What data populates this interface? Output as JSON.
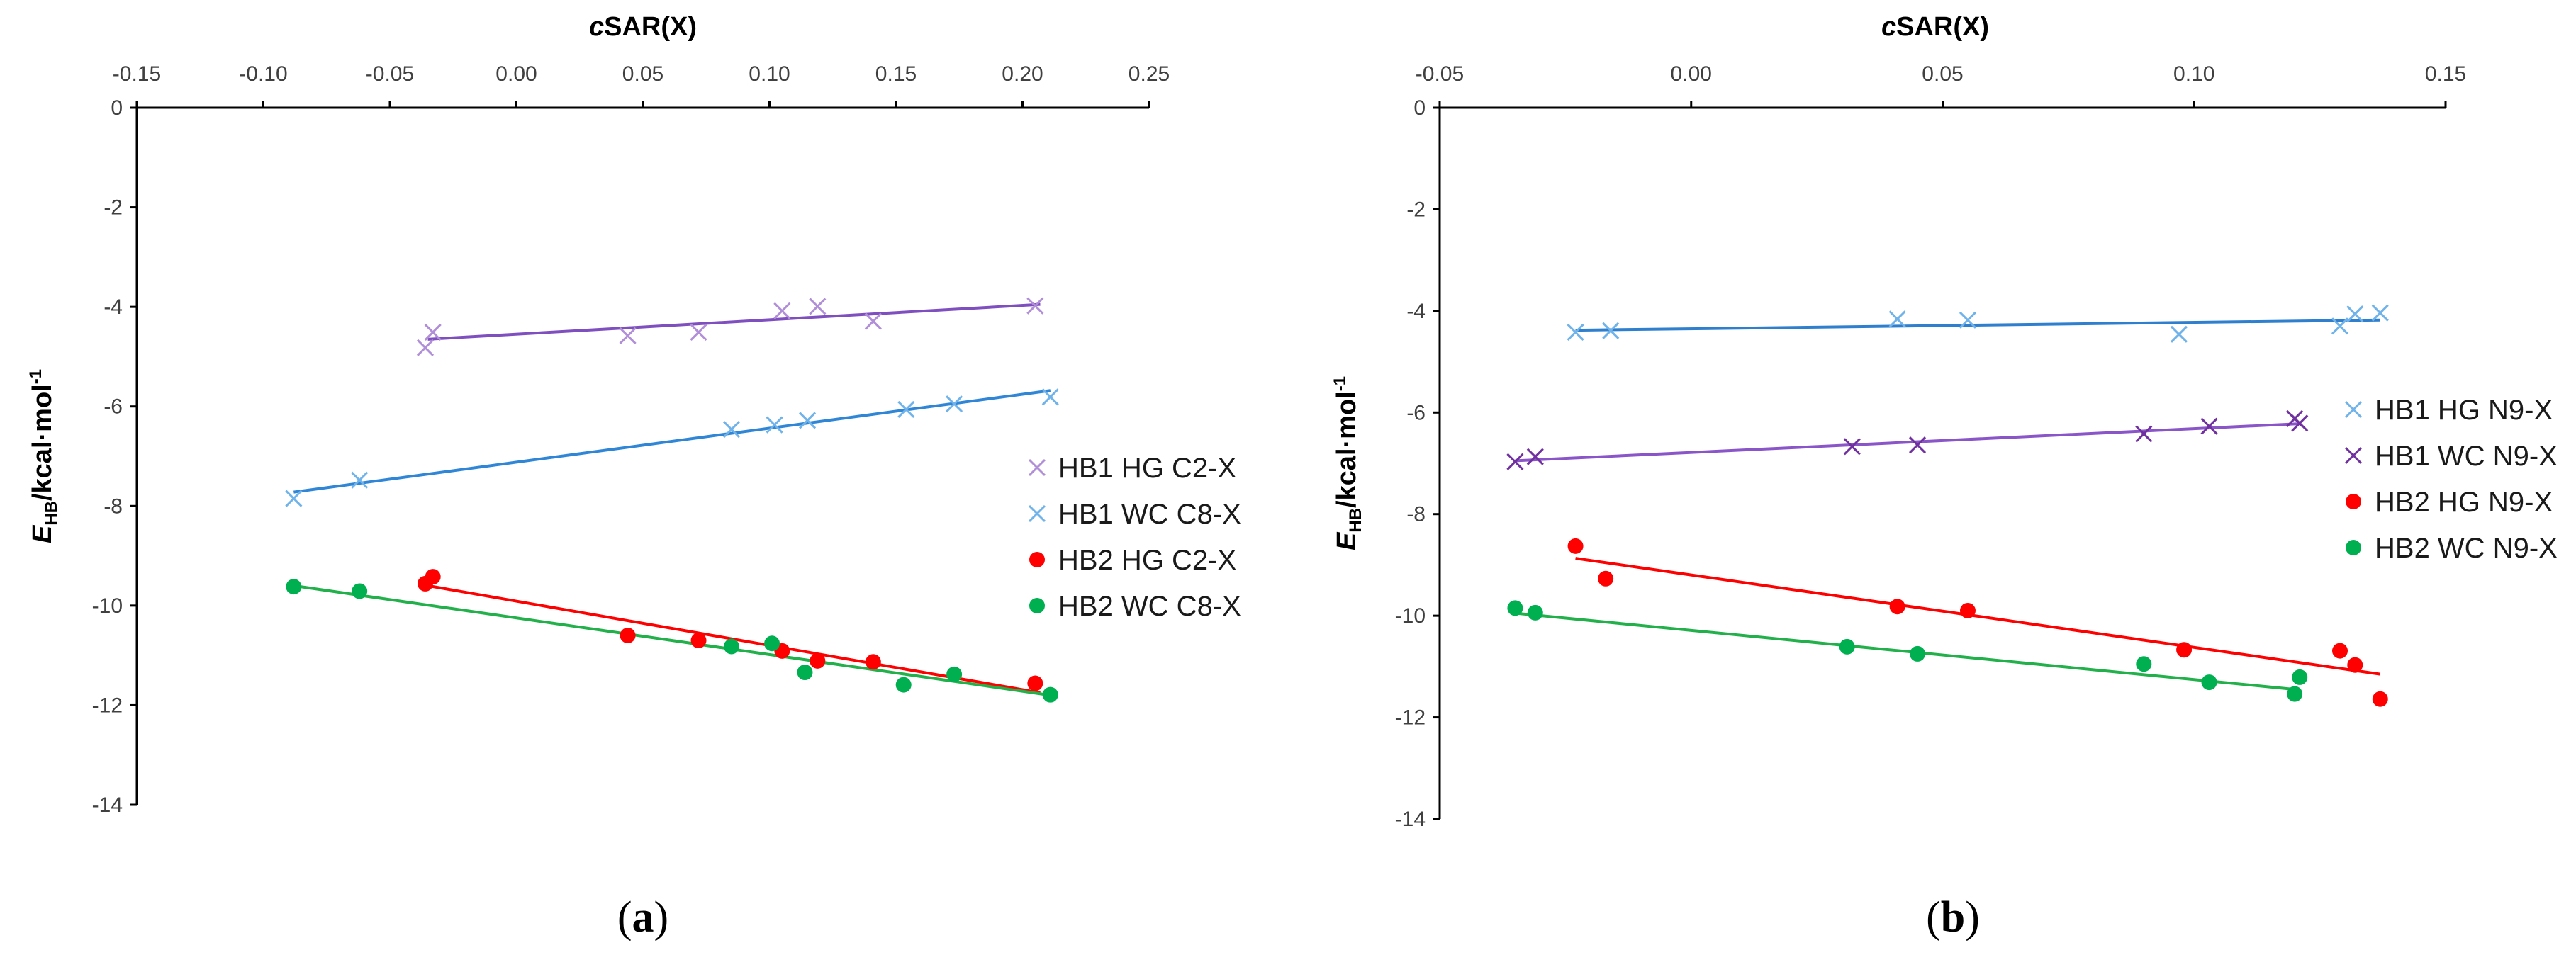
{
  "chart_data": [
    {
      "type": "scatter",
      "panel_label": "(a)",
      "panel_letter": "a",
      "xlabel": "cSAR(X)",
      "ylabel": "E_HB/kcal·mol⁻¹",
      "xlim": [
        -0.15,
        0.25
      ],
      "ylim": [
        -14,
        0
      ],
      "x_ticks": [
        "-0.15",
        "-0.10",
        "-0.05",
        "0.00",
        "0.05",
        "0.10",
        "0.15",
        "0.20",
        "0.25"
      ],
      "y_ticks": [
        "0",
        "-2",
        "-4",
        "-6",
        "-8",
        "-10",
        "-12",
        "-14"
      ],
      "x_axis_position": "top",
      "grid": false,
      "legend": "right",
      "series": [
        {
          "name": "HB1 HG C2-X",
          "marker": "x",
          "color": "#b18fd8",
          "line_color": "#7f4fc0",
          "x": [
            -0.036,
            -0.033,
            0.044,
            0.072,
            0.105,
            0.119,
            0.141,
            0.205
          ],
          "y": [
            -4.82,
            -4.51,
            -4.58,
            -4.51,
            -4.08,
            -3.99,
            -4.29,
            -3.98
          ],
          "trend": [
            [
              -0.035,
              -4.65
            ],
            [
              0.207,
              -3.95
            ]
          ]
        },
        {
          "name": "HB1 WC C8-X",
          "marker": "x",
          "color": "#6fb3ea",
          "line_color": "#2f86d6",
          "x": [
            -0.088,
            -0.062,
            0.085,
            0.102,
            0.115,
            0.154,
            0.173,
            0.211
          ],
          "y": [
            -7.85,
            -7.48,
            -6.46,
            -6.37,
            -6.28,
            -6.06,
            -5.95,
            -5.81
          ],
          "trend": [
            [
              -0.088,
              -7.72
            ],
            [
              0.211,
              -5.68
            ]
          ]
        },
        {
          "name": "HB2 HG C2-X",
          "marker": "dot",
          "color": "#ff0000",
          "line_color": "#ff0000",
          "x": [
            -0.036,
            -0.033,
            0.044,
            0.072,
            0.105,
            0.119,
            0.141,
            0.205
          ],
          "y": [
            -9.56,
            -9.42,
            -10.6,
            -10.7,
            -10.91,
            -11.11,
            -11.13,
            -11.56
          ],
          "trend": [
            [
              -0.035,
              -9.6
            ],
            [
              0.207,
              -11.75
            ]
          ]
        },
        {
          "name": "HB2 WC C8-X",
          "marker": "dot",
          "color": "#00b050",
          "line_color": "#22b04a",
          "x": [
            -0.088,
            -0.062,
            0.085,
            0.101,
            0.114,
            0.153,
            0.173,
            0.211
          ],
          "y": [
            -9.62,
            -9.71,
            -10.82,
            -10.76,
            -11.34,
            -11.59,
            -11.38,
            -11.79
          ],
          "trend": [
            [
              -0.088,
              -9.6
            ],
            [
              0.211,
              -11.8
            ]
          ]
        }
      ]
    },
    {
      "type": "scatter",
      "panel_label": "(b)",
      "panel_letter": "b",
      "xlabel": "cSAR(X)",
      "ylabel": "E_HB/kcal·mol⁻¹",
      "xlim": [
        -0.05,
        0.15
      ],
      "ylim": [
        -14,
        0
      ],
      "x_ticks": [
        "-0.05",
        "0.00",
        "0.05",
        "0.10",
        "0.15"
      ],
      "y_ticks": [
        "0",
        "-2",
        "-4",
        "-6",
        "-8",
        "-10",
        "-12",
        "-14"
      ],
      "x_axis_position": "top",
      "grid": false,
      "legend": "right",
      "series": [
        {
          "name": "HB1 HG N9-X",
          "marker": "x",
          "color": "#6fb3ea",
          "line_color": "#2f7fcf",
          "x": [
            -0.023,
            -0.016,
            0.041,
            0.055,
            0.097,
            0.129,
            0.132,
            0.137
          ],
          "y": [
            -4.42,
            -4.39,
            -4.16,
            -4.18,
            -4.46,
            -4.3,
            -4.06,
            -4.04
          ],
          "trend": [
            [
              -0.023,
              -4.38
            ],
            [
              0.137,
              -4.18
            ]
          ]
        },
        {
          "name": "HB1 WC N9-X",
          "marker": "x",
          "color": "#7030a0",
          "line_color": "#8a55c8",
          "x": [
            -0.035,
            -0.031,
            0.032,
            0.045,
            0.09,
            0.103,
            0.12,
            0.121
          ],
          "y": [
            -6.97,
            -6.87,
            -6.67,
            -6.64,
            -6.42,
            -6.27,
            -6.12,
            -6.21
          ],
          "trend": [
            [
              -0.035,
              -6.95
            ],
            [
              0.121,
              -6.22
            ]
          ]
        },
        {
          "name": "HB2 HG N9-X",
          "marker": "dot",
          "color": "#ff0000",
          "line_color": "#ff0000",
          "x": [
            -0.023,
            -0.017,
            0.041,
            0.055,
            0.098,
            0.129,
            0.132,
            0.137
          ],
          "y": [
            -8.63,
            -9.27,
            -9.82,
            -9.9,
            -10.67,
            -10.69,
            -10.97,
            -11.64
          ],
          "trend": [
            [
              -0.023,
              -8.87
            ],
            [
              0.137,
              -11.15
            ]
          ]
        },
        {
          "name": "HB2 WC N9-X",
          "marker": "dot",
          "color": "#00b050",
          "line_color": "#22b04a",
          "x": [
            -0.035,
            -0.031,
            0.031,
            0.045,
            0.09,
            0.103,
            0.12,
            0.121
          ],
          "y": [
            -9.85,
            -9.94,
            -10.61,
            -10.75,
            -10.95,
            -11.31,
            -11.54,
            -11.21
          ],
          "trend": [
            [
              -0.035,
              -9.95
            ],
            [
              0.12,
              -11.45
            ]
          ]
        }
      ]
    }
  ]
}
